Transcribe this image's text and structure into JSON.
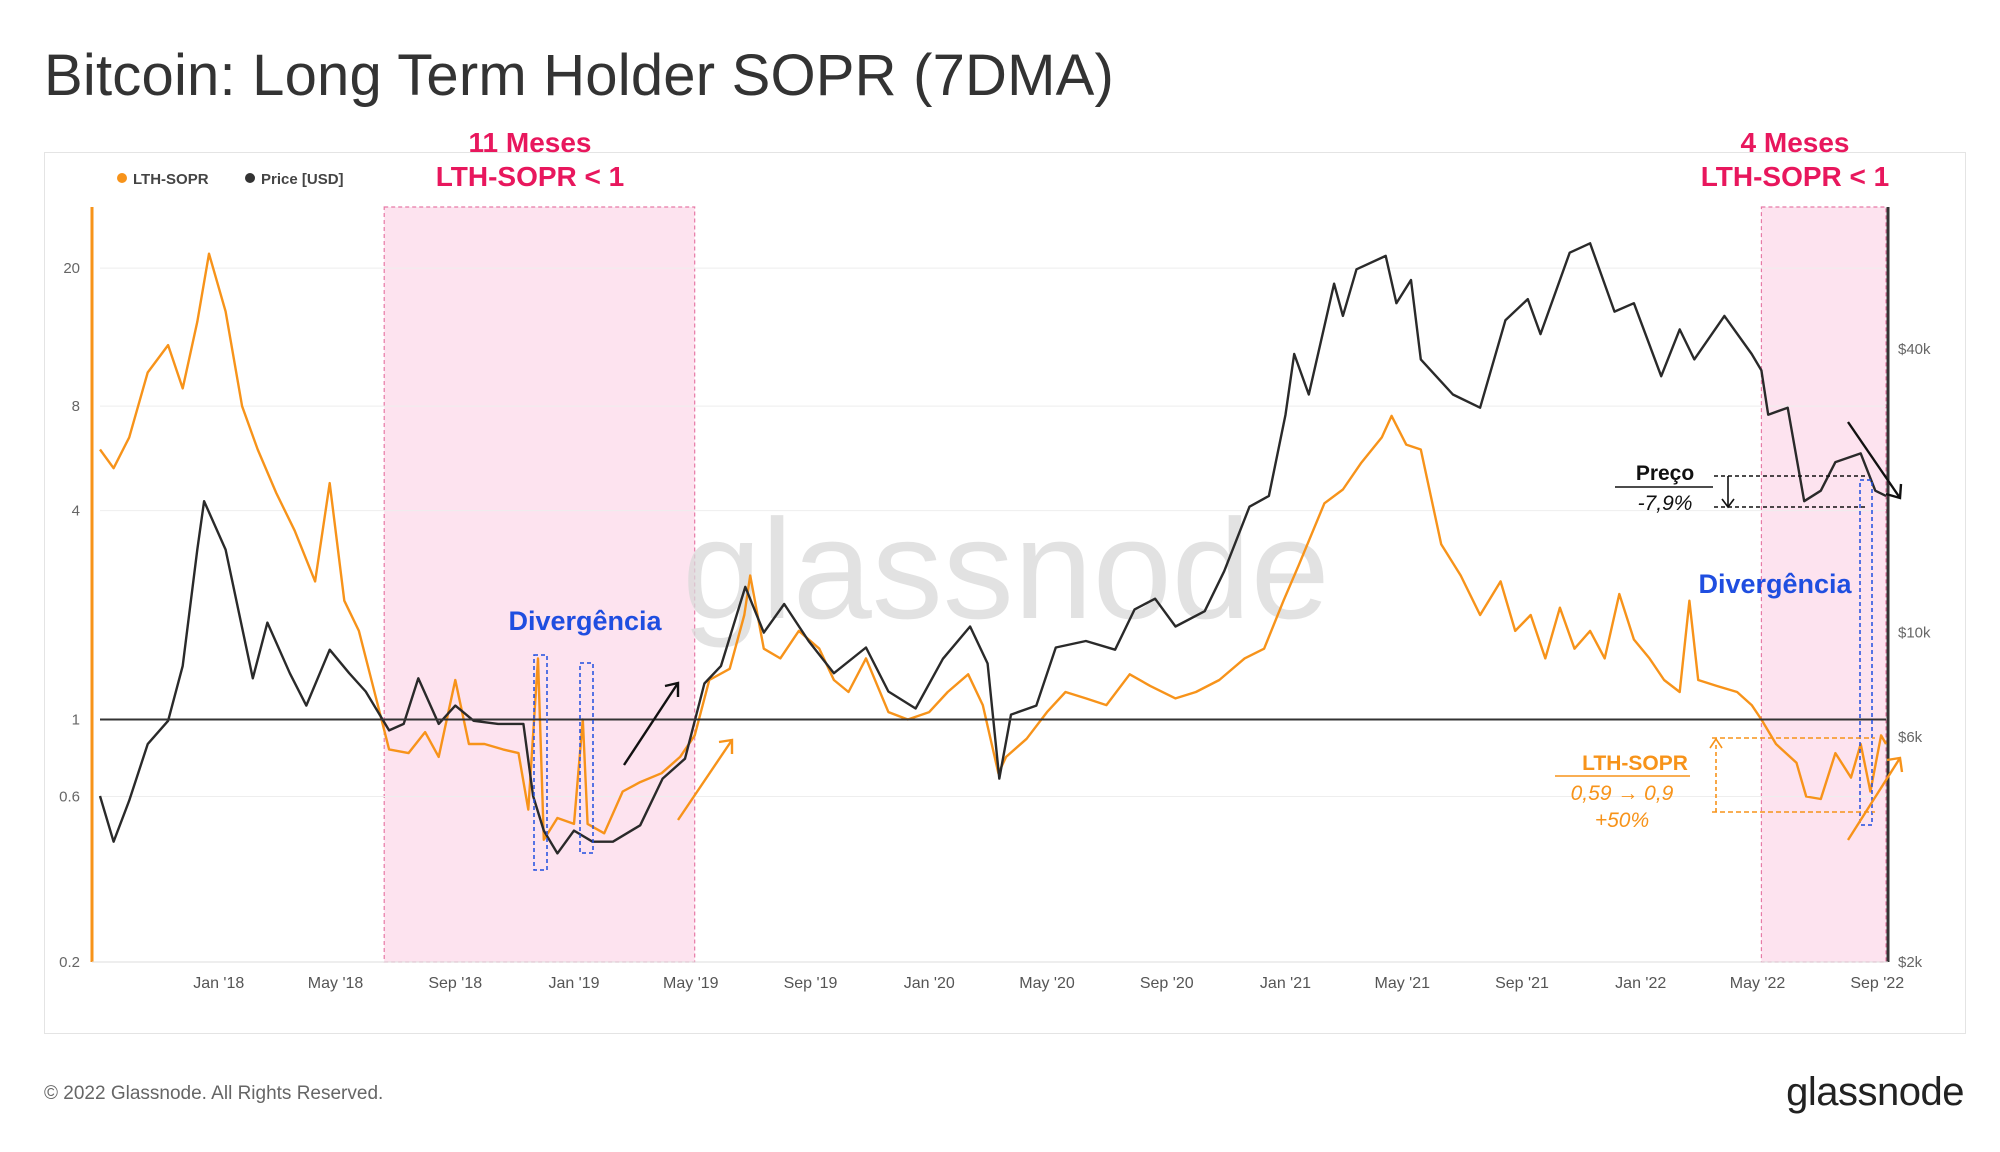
{
  "page": {
    "title": "Bitcoin: Long Term Holder SOPR (7DMA)",
    "copyright": "© 2022 Glassnode. All Rights Reserved.",
    "logo": "glassnode",
    "watermark": "glassnode"
  },
  "legend": [
    {
      "label": "LTH-SOPR",
      "color": "#f7931a"
    },
    {
      "label": "Price [USD]",
      "color": "#333333"
    }
  ],
  "annotations": {
    "period1": {
      "line1": "11 Meses",
      "line2": "LTH-SOPR < 1",
      "start": "2018-06-20",
      "end": "2019-05-05"
    },
    "period2": {
      "line1": "4 Meses",
      "line2": "LTH-SOPR < 1",
      "start": "2022-05-05",
      "end": "2022-09-10"
    },
    "divergence1": "Divergência",
    "divergence2": "Divergência",
    "price_label": "Preço",
    "price_change": "-7,9%",
    "sopr_label": "LTH-SOPR",
    "sopr_change": "0,59 → 0,9",
    "sopr_pct": "+50%"
  },
  "colors": {
    "sopr": "#f7931a",
    "price": "#333333",
    "shade_fill": "#fde3ef",
    "shade_border": "#e77aa6",
    "annotation_pink": "#e8175d",
    "annotation_blue": "#1f4ee0",
    "grid": "#eeeeee"
  },
  "chart_data": {
    "type": "line",
    "title": "Bitcoin: Long Term Holder SOPR (7DMA)",
    "scale": "log",
    "x_range": [
      "2017-09-01",
      "2022-09-10"
    ],
    "x_ticks": [
      "Jan '18",
      "May '18",
      "Sep '18",
      "Jan '19",
      "May '19",
      "Sep '19",
      "Jan '20",
      "May '20",
      "Sep '20",
      "Jan '21",
      "May '21",
      "Sep '21",
      "Jan '22",
      "May '22",
      "Sep '22"
    ],
    "y_left": {
      "ticks": [
        "0.2",
        "0.6",
        "1",
        "4",
        "8",
        "20"
      ],
      "range": [
        0.2,
        30
      ]
    },
    "y_right": {
      "ticks": [
        "$2k",
        "$6k",
        "$10k",
        "$40k"
      ],
      "range": [
        2000,
        80000
      ]
    },
    "series": [
      {
        "name": "LTH-SOPR",
        "axis": "left",
        "color": "#f7931a",
        "points": [
          [
            "2017-09-01",
            6.0
          ],
          [
            "2017-09-15",
            5.3
          ],
          [
            "2017-10-01",
            6.5
          ],
          [
            "2017-10-20",
            10
          ],
          [
            "2017-11-10",
            12
          ],
          [
            "2017-11-25",
            9
          ],
          [
            "2017-12-10",
            14
          ],
          [
            "2017-12-22",
            22
          ],
          [
            "2018-01-08",
            15
          ],
          [
            "2018-01-25",
            8
          ],
          [
            "2018-02-10",
            6
          ],
          [
            "2018-03-01",
            4.5
          ],
          [
            "2018-03-20",
            3.5
          ],
          [
            "2018-04-10",
            2.5
          ],
          [
            "2018-04-25",
            4.8
          ],
          [
            "2018-05-10",
            2.2
          ],
          [
            "2018-05-25",
            1.8
          ],
          [
            "2018-06-10",
            1.2
          ],
          [
            "2018-06-25",
            0.82
          ],
          [
            "2018-07-15",
            0.8
          ],
          [
            "2018-08-01",
            0.92
          ],
          [
            "2018-08-15",
            0.78
          ],
          [
            "2018-09-01",
            1.3
          ],
          [
            "2018-09-15",
            0.85
          ],
          [
            "2018-10-01",
            0.85
          ],
          [
            "2018-10-20",
            0.82
          ],
          [
            "2018-11-05",
            0.8
          ],
          [
            "2018-11-15",
            0.55
          ],
          [
            "2018-11-25",
            1.5
          ],
          [
            "2018-12-01",
            0.45
          ],
          [
            "2018-12-15",
            0.52
          ],
          [
            "2019-01-01",
            0.5
          ],
          [
            "2019-01-10",
            1.0
          ],
          [
            "2019-01-15",
            0.5
          ],
          [
            "2019-02-01",
            0.47
          ],
          [
            "2019-02-20",
            0.62
          ],
          [
            "2019-03-10",
            0.66
          ],
          [
            "2019-04-01",
            0.7
          ],
          [
            "2019-04-20",
            0.78
          ],
          [
            "2019-05-05",
            0.9
          ],
          [
            "2019-05-20",
            1.3
          ],
          [
            "2019-06-10",
            1.4
          ],
          [
            "2019-06-25",
            2.0
          ],
          [
            "2019-07-01",
            2.6
          ],
          [
            "2019-07-15",
            1.6
          ],
          [
            "2019-08-01",
            1.5
          ],
          [
            "2019-08-20",
            1.8
          ],
          [
            "2019-09-10",
            1.6
          ],
          [
            "2019-09-25",
            1.3
          ],
          [
            "2019-10-10",
            1.2
          ],
          [
            "2019-10-28",
            1.5
          ],
          [
            "2019-11-20",
            1.05
          ],
          [
            "2019-12-10",
            1.0
          ],
          [
            "2020-01-01",
            1.05
          ],
          [
            "2020-01-20",
            1.2
          ],
          [
            "2020-02-10",
            1.35
          ],
          [
            "2020-02-25",
            1.1
          ],
          [
            "2020-03-12",
            0.7
          ],
          [
            "2020-03-20",
            0.78
          ],
          [
            "2020-04-10",
            0.88
          ],
          [
            "2020-05-01",
            1.05
          ],
          [
            "2020-05-20",
            1.2
          ],
          [
            "2020-06-10",
            1.15
          ],
          [
            "2020-07-01",
            1.1
          ],
          [
            "2020-07-25",
            1.35
          ],
          [
            "2020-08-15",
            1.25
          ],
          [
            "2020-09-10",
            1.15
          ],
          [
            "2020-10-01",
            1.2
          ],
          [
            "2020-10-25",
            1.3
          ],
          [
            "2020-11-20",
            1.5
          ],
          [
            "2020-12-10",
            1.6
          ],
          [
            "2020-12-30",
            2.2
          ],
          [
            "2021-01-15",
            2.8
          ],
          [
            "2021-02-10",
            4.2
          ],
          [
            "2021-03-01",
            4.6
          ],
          [
            "2021-03-20",
            5.5
          ],
          [
            "2021-04-10",
            6.5
          ],
          [
            "2021-04-20",
            7.5
          ],
          [
            "2021-05-05",
            6.2
          ],
          [
            "2021-05-20",
            6.0
          ],
          [
            "2021-06-10",
            3.2
          ],
          [
            "2021-06-30",
            2.6
          ],
          [
            "2021-07-20",
            2.0
          ],
          [
            "2021-08-10",
            2.5
          ],
          [
            "2021-08-25",
            1.8
          ],
          [
            "2021-09-10",
            2.0
          ],
          [
            "2021-09-25",
            1.5
          ],
          [
            "2021-10-10",
            2.1
          ],
          [
            "2021-10-25",
            1.6
          ],
          [
            "2021-11-10",
            1.8
          ],
          [
            "2021-11-25",
            1.5
          ],
          [
            "2021-12-10",
            2.3
          ],
          [
            "2021-12-25",
            1.7
          ],
          [
            "2022-01-10",
            1.5
          ],
          [
            "2022-01-25",
            1.3
          ],
          [
            "2022-02-10",
            1.2
          ],
          [
            "2022-02-20",
            2.2
          ],
          [
            "2022-03-01",
            1.3
          ],
          [
            "2022-03-20",
            1.25
          ],
          [
            "2022-04-10",
            1.2
          ],
          [
            "2022-04-25",
            1.1
          ],
          [
            "2022-05-05",
            1.0
          ],
          [
            "2022-05-20",
            0.85
          ],
          [
            "2022-06-10",
            0.75
          ],
          [
            "2022-06-20",
            0.6
          ],
          [
            "2022-07-05",
            0.59
          ],
          [
            "2022-07-20",
            0.8
          ],
          [
            "2022-08-05",
            0.68
          ],
          [
            "2022-08-15",
            0.85
          ],
          [
            "2022-08-25",
            0.62
          ],
          [
            "2022-09-05",
            0.9
          ],
          [
            "2022-09-10",
            0.85
          ]
        ]
      },
      {
        "name": "Price [USD]",
        "axis": "right",
        "color": "#333333",
        "points": [
          [
            "2017-09-01",
            4500
          ],
          [
            "2017-09-15",
            3600
          ],
          [
            "2017-10-01",
            4400
          ],
          [
            "2017-10-20",
            5800
          ],
          [
            "2017-11-10",
            6500
          ],
          [
            "2017-11-25",
            8500
          ],
          [
            "2017-12-10",
            15000
          ],
          [
            "2017-12-17",
            19000
          ],
          [
            "2018-01-08",
            15000
          ],
          [
            "2018-02-05",
            8000
          ],
          [
            "2018-02-20",
            10500
          ],
          [
            "2018-03-15",
            8200
          ],
          [
            "2018-04-01",
            7000
          ],
          [
            "2018-04-25",
            9200
          ],
          [
            "2018-05-15",
            8200
          ],
          [
            "2018-06-01",
            7500
          ],
          [
            "2018-06-25",
            6200
          ],
          [
            "2018-07-10",
            6400
          ],
          [
            "2018-07-25",
            8000
          ],
          [
            "2018-08-15",
            6400
          ],
          [
            "2018-09-01",
            7000
          ],
          [
            "2018-09-20",
            6500
          ],
          [
            "2018-10-15",
            6400
          ],
          [
            "2018-11-10",
            6400
          ],
          [
            "2018-11-20",
            4500
          ],
          [
            "2018-12-01",
            3800
          ],
          [
            "2018-12-15",
            3400
          ],
          [
            "2019-01-01",
            3800
          ],
          [
            "2019-01-20",
            3600
          ],
          [
            "2019-02-10",
            3600
          ],
          [
            "2019-03-10",
            3900
          ],
          [
            "2019-04-02",
            4900
          ],
          [
            "2019-04-25",
            5400
          ],
          [
            "2019-05-15",
            7800
          ],
          [
            "2019-06-01",
            8500
          ],
          [
            "2019-06-26",
            12500
          ],
          [
            "2019-07-15",
            10000
          ],
          [
            "2019-08-05",
            11500
          ],
          [
            "2019-08-30",
            9600
          ],
          [
            "2019-09-25",
            8200
          ],
          [
            "2019-10-28",
            9300
          ],
          [
            "2019-11-20",
            7500
          ],
          [
            "2019-12-18",
            6900
          ],
          [
            "2020-01-15",
            8800
          ],
          [
            "2020-02-12",
            10300
          ],
          [
            "2020-03-01",
            8600
          ],
          [
            "2020-03-13",
            4900
          ],
          [
            "2020-03-25",
            6700
          ],
          [
            "2020-04-20",
            7000
          ],
          [
            "2020-05-10",
            9300
          ],
          [
            "2020-06-10",
            9600
          ],
          [
            "2020-07-10",
            9200
          ],
          [
            "2020-07-30",
            11200
          ],
          [
            "2020-08-20",
            11800
          ],
          [
            "2020-09-10",
            10300
          ],
          [
            "2020-10-10",
            11100
          ],
          [
            "2020-10-30",
            13500
          ],
          [
            "2020-11-25",
            18500
          ],
          [
            "2020-12-15",
            19500
          ],
          [
            "2021-01-01",
            29000
          ],
          [
            "2021-01-10",
            39000
          ],
          [
            "2021-01-25",
            32000
          ],
          [
            "2021-02-20",
            55000
          ],
          [
            "2021-03-01",
            47000
          ],
          [
            "2021-03-15",
            59000
          ],
          [
            "2021-04-14",
            63000
          ],
          [
            "2021-04-25",
            50000
          ],
          [
            "2021-05-10",
            56000
          ],
          [
            "2021-05-20",
            38000
          ],
          [
            "2021-06-22",
            32000
          ],
          [
            "2021-07-20",
            30000
          ],
          [
            "2021-08-15",
            46000
          ],
          [
            "2021-09-07",
            51000
          ],
          [
            "2021-09-20",
            43000
          ],
          [
            "2021-10-20",
            64000
          ],
          [
            "2021-11-10",
            67000
          ],
          [
            "2021-12-05",
            48000
          ],
          [
            "2021-12-25",
            50000
          ],
          [
            "2022-01-22",
            35000
          ],
          [
            "2022-02-10",
            44000
          ],
          [
            "2022-02-25",
            38000
          ],
          [
            "2022-03-28",
            47000
          ],
          [
            "2022-04-25",
            39000
          ],
          [
            "2022-05-05",
            36000
          ],
          [
            "2022-05-12",
            29000
          ],
          [
            "2022-06-01",
            30000
          ],
          [
            "2022-06-18",
            19000
          ],
          [
            "2022-07-05",
            20000
          ],
          [
            "2022-07-20",
            23000
          ],
          [
            "2022-08-15",
            24000
          ],
          [
            "2022-08-30",
            20000
          ],
          [
            "2022-09-10",
            19500
          ]
        ]
      }
    ]
  }
}
